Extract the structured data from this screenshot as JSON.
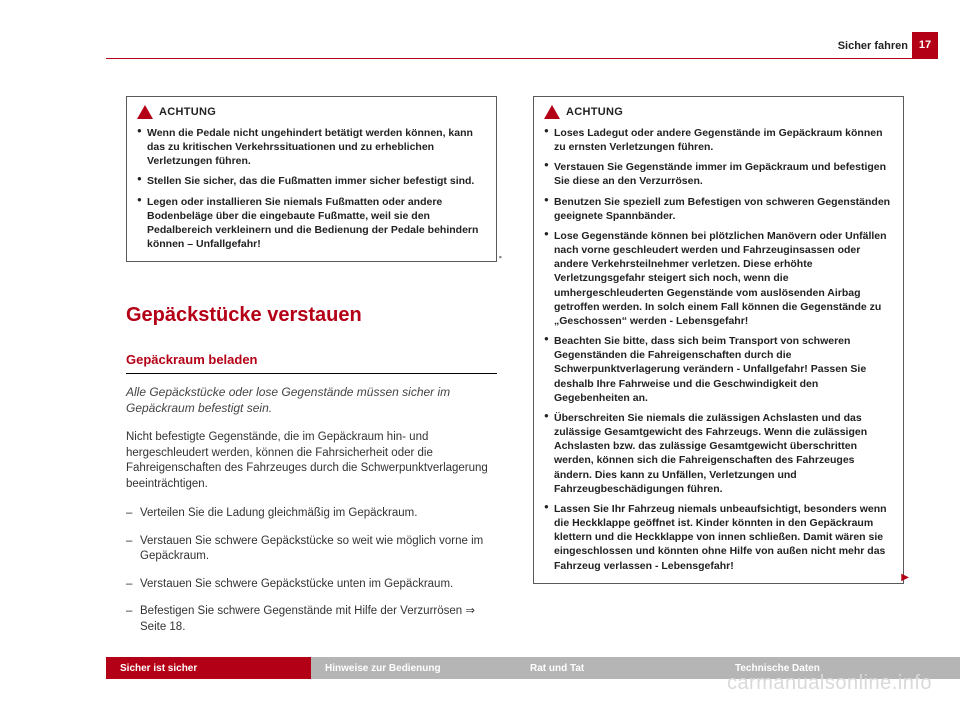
{
  "page": {
    "header_section": "Sicher fahren",
    "number": "17"
  },
  "left": {
    "achtung_title": "ACHTUNG",
    "achtung_items": [
      "Wenn die Pedale nicht ungehindert betätigt werden können, kann das zu kritischen Verkehrssituationen und zu erheblichen Verletzungen führen.",
      "Stellen Sie sicher, das die Fußmatten immer sicher befestigt sind.",
      "Legen oder installieren Sie niemals Fußmatten oder andere Bodenbeläge über die eingebaute Fußmatte, weil sie den Pedalbereich verkleinern und die Bedienung der Pedale behindern können – Unfallgefahr!"
    ],
    "h1": "Gepäckstücke verstauen",
    "h2": "Gepäckraum beladen",
    "intro": "Alle Gepäckstücke oder lose Gegenstände müssen sicher im Gepäckraum befestigt sein.",
    "body": "Nicht befestigte Gegenstände, die im Gepäckraum hin- und hergeschleudert werden, können die Fahrsicherheit oder die Fahreigenschaften des Fahrzeuges durch die Schwerpunktverlagerung beeinträchtigen.",
    "dash_items": [
      "Verteilen Sie die Ladung gleichmäßig im Gepäckraum.",
      "Verstauen Sie schwere Gepäckstücke so weit wie möglich vorne im Gepäckraum.",
      "Verstauen Sie schwere Gepäckstücke unten im Gepäckraum.",
      "Befestigen Sie schwere Gegenstände mit Hilfe der Verzurrösen ⇒ Seite 18."
    ]
  },
  "right": {
    "achtung_title": "ACHTUNG",
    "achtung_items": [
      "Loses Ladegut oder andere Gegenstände im Gepäckraum können zu ernsten Verletzungen führen.",
      "Verstauen Sie Gegenstände immer im Gepäckraum und befestigen Sie diese an den Verzurrösen.",
      "Benutzen Sie speziell zum Befestigen von schweren Gegenständen geeignete Spannbänder.",
      "Lose Gegenstände können bei plötzlichen Manövern oder Unfällen nach vorne geschleudert werden und Fahrzeuginsassen oder andere Verkehrsteilnehmer verletzen. Diese erhöhte Verletzungsgefahr steigert sich noch, wenn die umhergeschleuderten Gegenstände vom auslösenden Airbag getroffen werden. In solch einem Fall können die Gegenstände zu „Geschossen“ werden - Lebensgefahr!",
      "Beachten Sie bitte, dass sich beim Transport von schweren Gegenständen die Fahreigenschaften durch die Schwerpunktverlagerung verändern - Unfallgefahr! Passen Sie deshalb Ihre Fahrweise und die Geschwindigkeit den Gegebenheiten an.",
      "Überschreiten Sie niemals die zulässigen Achslasten und das zulässige Gesamtgewicht des Fahrzeugs. Wenn die zulässigen Achslasten bzw. das zulässige Gesamtgewicht überschritten werden, können sich die Fahreigenschaften des Fahrzeuges ändern. Dies kann zu Unfällen, Verletzungen und Fahrzeugbeschädigungen führen.",
      "Lassen Sie Ihr Fahrzeug niemals unbeaufsichtigt, besonders wenn die Heckklappe geöffnet ist. Kinder könnten in den Gepäckraum klettern und die Heckklappe von innen schließen. Damit wären sie eingeschlossen und könnten ohne Hilfe von außen nicht mehr das Fahrzeug verlassen - Lebensgefahr!"
    ]
  },
  "tabs": {
    "t1": "Sicher ist sicher",
    "t2": "Hinweise zur Bedienung",
    "t3": "Rat und Tat",
    "t4": "Technische Daten"
  },
  "watermark": "carmanualsonline.info",
  "colors": {
    "brand_red": "#b40016",
    "tab_gray": "#b5b5b5",
    "text": "#222222",
    "watermark": "#d9d9d9"
  }
}
